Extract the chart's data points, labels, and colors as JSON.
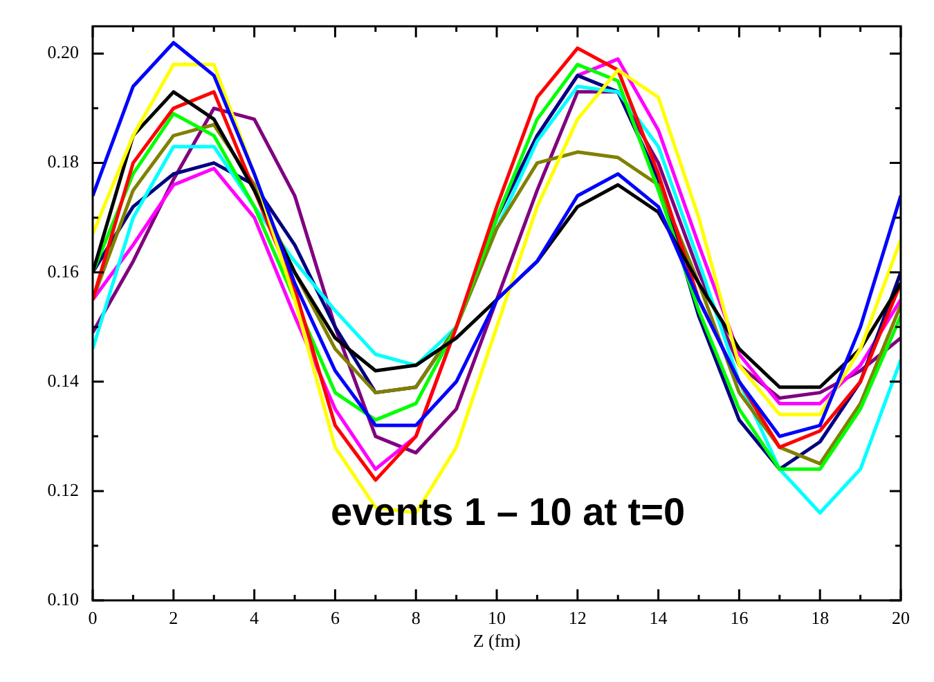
{
  "chart_data": {
    "type": "line",
    "xlabel": "Z (fm)",
    "annotations": [
      "events 1 – 10 at t=0"
    ],
    "x": [
      0,
      1,
      2,
      3,
      4,
      5,
      6,
      7,
      8,
      9,
      10,
      11,
      12,
      13,
      14,
      15,
      16,
      17,
      18,
      19,
      20
    ],
    "xlim": [
      0,
      20
    ],
    "xticks": [
      0,
      {
        "value": 1,
        "label": null
      },
      2,
      {
        "value": 3,
        "label": null
      },
      4,
      {
        "value": 5,
        "label": null
      },
      6,
      {
        "value": 7,
        "label": null
      },
      8,
      {
        "value": 9,
        "label": null
      },
      10,
      {
        "value": 11,
        "label": null
      },
      12,
      {
        "value": 13,
        "label": null
      },
      14,
      {
        "value": 15,
        "label": null
      },
      16,
      {
        "value": 17,
        "label": null
      },
      18,
      {
        "value": 19,
        "label": null
      },
      20
    ],
    "ylim": [
      0.1,
      0.205
    ],
    "yticks": [
      {
        "value": 0.1,
        "label": "0.10"
      },
      {
        "value": 0.11,
        "label": null
      },
      {
        "value": 0.12,
        "label": "0.12"
      },
      {
        "value": 0.13,
        "label": null
      },
      {
        "value": 0.14,
        "label": "0.14"
      },
      {
        "value": 0.15,
        "label": null
      },
      {
        "value": 0.16,
        "label": "0.16"
      },
      {
        "value": 0.17,
        "label": null
      },
      {
        "value": 0.18,
        "label": "0.18"
      },
      {
        "value": 0.19,
        "label": null
      },
      {
        "value": 0.2,
        "label": "0.20"
      }
    ],
    "grid": false,
    "legend": false,
    "marker": "none",
    "line_style": "solid",
    "series": [
      {
        "color": "#0000ff",
        "values": [
          0.174,
          0.194,
          0.202,
          0.196,
          0.178,
          0.158,
          0.142,
          0.132,
          0.132,
          0.14,
          0.155,
          0.162,
          0.174,
          0.178,
          0.172,
          0.155,
          0.14,
          0.13,
          0.132,
          0.15,
          0.174
        ]
      },
      {
        "color": "#ffff00",
        "values": [
          0.167,
          0.185,
          0.198,
          0.198,
          0.178,
          0.155,
          0.128,
          0.117,
          0.116,
          0.128,
          0.15,
          0.172,
          0.188,
          0.197,
          0.192,
          0.17,
          0.143,
          0.134,
          0.134,
          0.146,
          0.166
        ]
      },
      {
        "color": "#000000",
        "values": [
          0.16,
          0.185,
          0.193,
          0.188,
          0.175,
          0.16,
          0.148,
          0.142,
          0.143,
          0.148,
          0.155,
          0.162,
          0.172,
          0.176,
          0.171,
          0.158,
          0.146,
          0.139,
          0.139,
          0.146,
          0.158
        ]
      },
      {
        "color": "#ff0000",
        "values": [
          0.155,
          0.18,
          0.19,
          0.193,
          0.175,
          0.157,
          0.132,
          0.122,
          0.13,
          0.15,
          0.172,
          0.192,
          0.201,
          0.197,
          0.178,
          0.155,
          0.14,
          0.128,
          0.131,
          0.14,
          0.158
        ]
      },
      {
        "color": "#00ff00",
        "values": [
          0.16,
          0.178,
          0.189,
          0.185,
          0.172,
          0.155,
          0.138,
          0.133,
          0.136,
          0.15,
          0.17,
          0.188,
          0.198,
          0.195,
          0.175,
          0.153,
          0.135,
          0.124,
          0.124,
          0.135,
          0.152
        ]
      },
      {
        "color": "#808000",
        "values": [
          0.155,
          0.175,
          0.185,
          0.187,
          0.176,
          0.16,
          0.146,
          0.138,
          0.139,
          0.15,
          0.168,
          0.18,
          0.182,
          0.181,
          0.176,
          0.158,
          0.138,
          0.128,
          0.125,
          0.136,
          0.154
        ]
      },
      {
        "color": "#00ffff",
        "values": [
          0.146,
          0.17,
          0.183,
          0.183,
          0.172,
          0.162,
          0.153,
          0.145,
          0.143,
          0.15,
          0.168,
          0.184,
          0.194,
          0.193,
          0.183,
          0.162,
          0.14,
          0.124,
          0.116,
          0.124,
          0.144
        ]
      },
      {
        "color": "#000080",
        "values": [
          0.16,
          0.172,
          0.178,
          0.18,
          0.176,
          0.165,
          0.15,
          0.138,
          0.139,
          0.15,
          0.17,
          0.185,
          0.196,
          0.193,
          0.177,
          0.152,
          0.133,
          0.124,
          0.129,
          0.14,
          0.16
        ]
      },
      {
        "color": "#ff00ff",
        "values": [
          0.155,
          0.165,
          0.176,
          0.179,
          0.17,
          0.152,
          0.135,
          0.124,
          0.13,
          0.15,
          0.17,
          0.185,
          0.196,
          0.199,
          0.186,
          0.165,
          0.145,
          0.136,
          0.136,
          0.143,
          0.155
        ]
      },
      {
        "color": "#800080",
        "values": [
          0.149,
          0.162,
          0.177,
          0.19,
          0.188,
          0.174,
          0.15,
          0.13,
          0.127,
          0.135,
          0.155,
          0.175,
          0.193,
          0.193,
          0.18,
          0.16,
          0.143,
          0.137,
          0.138,
          0.142,
          0.148
        ]
      }
    ]
  }
}
